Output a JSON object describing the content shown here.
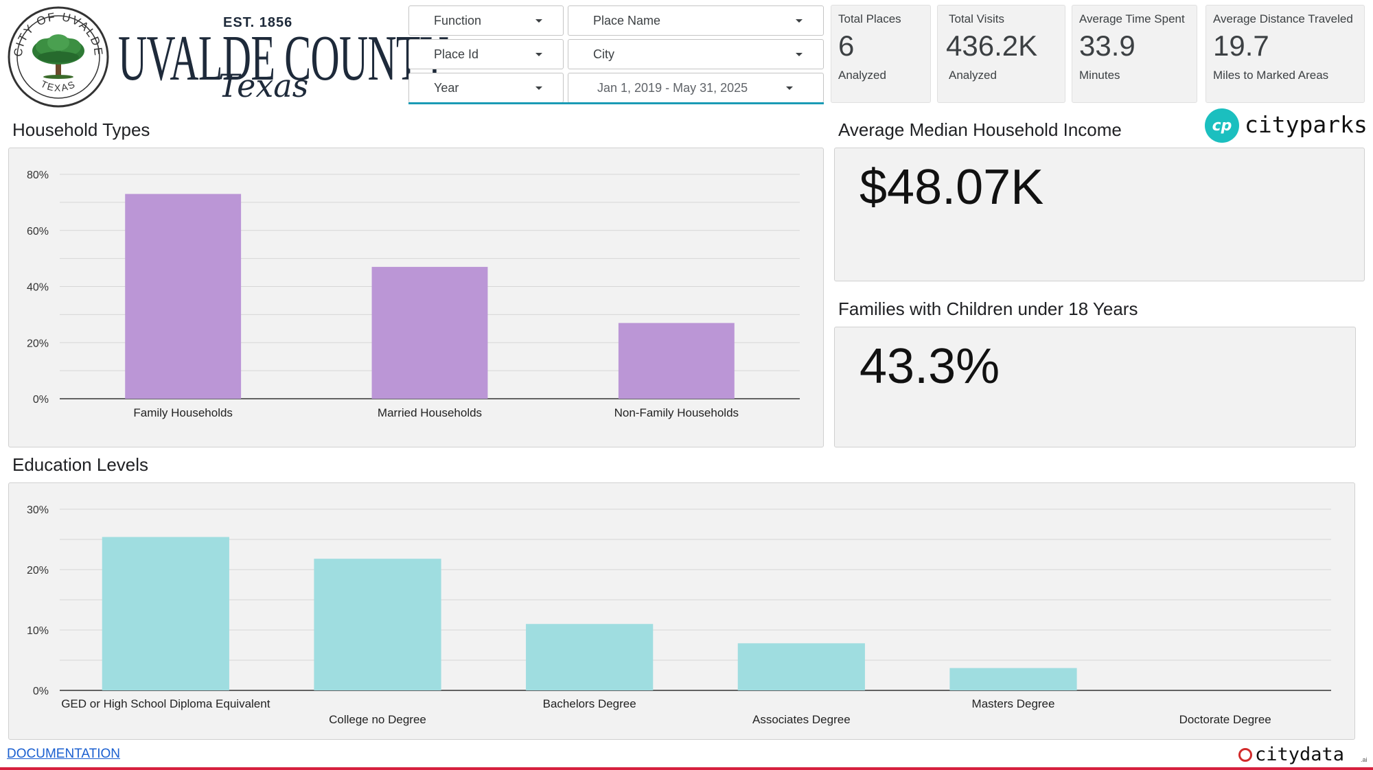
{
  "logo": {
    "seal_top": "CITY OF UVALDE",
    "seal_bottom": "TEXAS",
    "established": "EST. 1856",
    "county": "UVALDE COUNTY",
    "state": "Texas"
  },
  "filters": {
    "function": "Function",
    "place_name": "Place Name",
    "place_id": "Place Id",
    "city": "City",
    "year": "Year",
    "date_range": "Jan 1, 2019 - May 31, 2025"
  },
  "kpis": [
    {
      "title": "Total Places",
      "value": "6",
      "sub": "Analyzed"
    },
    {
      "title": "Total Visits",
      "value": "436.2K",
      "sub": "Analyzed"
    },
    {
      "title": "Average Time Spent",
      "value": "33.9",
      "sub": "Minutes"
    },
    {
      "title": "Average Distance Traveled",
      "value": "19.7",
      "sub": "Miles to Marked Areas"
    }
  ],
  "household": {
    "title": "Household Types"
  },
  "income": {
    "title": "Average Median Household Income",
    "value": "$48.07K"
  },
  "families": {
    "title": "Families with Children under 18 Years",
    "value": "43.3%"
  },
  "education": {
    "title": "Education Levels"
  },
  "brand": {
    "cityparks_mark": "cp",
    "cityparks": "cityparks",
    "citydata": "citydata",
    "citydata_suffix": ".ai"
  },
  "footer": {
    "documentation": "DOCUMENTATION"
  },
  "colors": {
    "household_bar": "#bb96d6",
    "education_bar": "#9fdde0",
    "accent": "#1a9bb5",
    "footer_rule": "#d6213f"
  },
  "chart_data": [
    {
      "type": "bar",
      "title": "Household Types",
      "categories": [
        "Family Households",
        "Married Households",
        "Non-Family Households"
      ],
      "values": [
        73,
        47,
        27
      ],
      "unit": "%",
      "ylim": [
        0,
        80
      ],
      "yticks": [
        0,
        20,
        40,
        60,
        80
      ],
      "ytick_labels": [
        "0%",
        "20%",
        "40%",
        "60%",
        "80%"
      ],
      "grid": true,
      "minor_grid_step": 10
    },
    {
      "type": "bar",
      "title": "Education Levels",
      "categories": [
        "GED or High School Diploma Equivalent",
        "College no Degree",
        "Bachelors Degree",
        "Associates Degree",
        "Masters Degree",
        "Doctorate Degree"
      ],
      "values": [
        25.4,
        21.8,
        11.0,
        7.8,
        3.7,
        0
      ],
      "unit": "%",
      "ylim": [
        0,
        30
      ],
      "yticks": [
        0,
        10,
        20,
        30
      ],
      "ytick_labels": [
        "0%",
        "10%",
        "20%",
        "30%"
      ],
      "grid": true,
      "minor_grid_step": 5,
      "staggered_labels": true
    }
  ]
}
